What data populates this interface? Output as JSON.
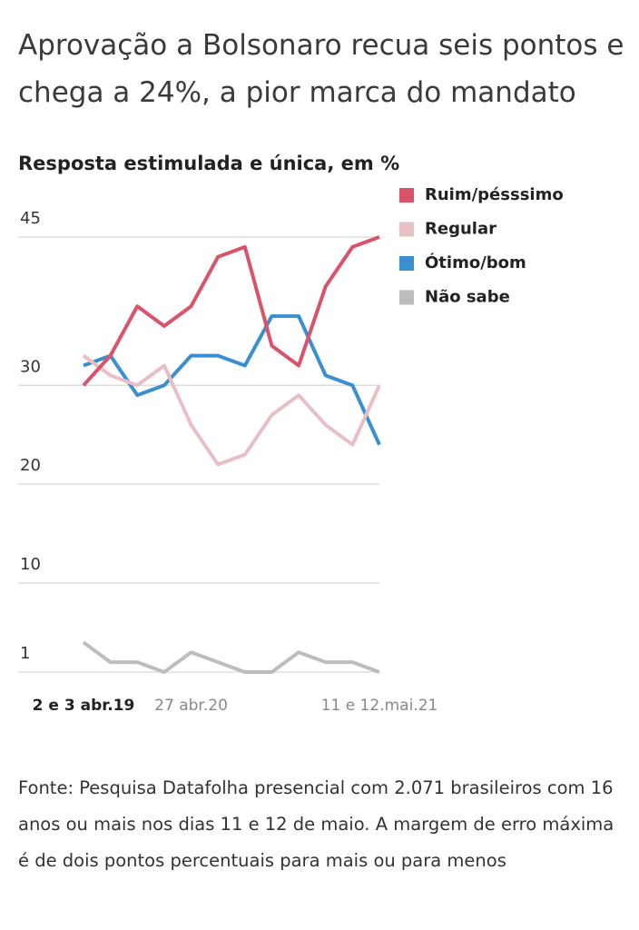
{
  "chart_data": {
    "type": "line",
    "title": "Aprovação a Bolsonaro recua seis pontos e chega a 24%, a pior marca do mandato",
    "subtitle": "Resposta estimulada e única, em %",
    "source": "Fonte: Pesquisa Datafolha presencial com 2.071 brasileiros com 16 anos ou mais nos dias 11 e 12 de maio. A margem de erro máxima é de dois pontos percentuais para mais ou para menos",
    "categories": [
      "2 e 3 abr.19",
      null,
      null,
      null,
      "27 abr.20",
      null,
      null,
      null,
      null,
      null,
      null,
      "11 e 12.mai.21"
    ],
    "series": [
      {
        "name": "Ruim/pésssimo",
        "color": "#d9536b",
        "values": [
          30,
          33,
          38,
          36,
          38,
          43,
          44,
          34,
          32,
          40,
          44,
          45
        ]
      },
      {
        "name": "Regular",
        "color": "#e8bfc4",
        "values": [
          33,
          31,
          30,
          32,
          26,
          22,
          23,
          27,
          29,
          26,
          24,
          30
        ]
      },
      {
        "name": "Ótimo/bom",
        "color": "#3a8fd0",
        "values": [
          32,
          33,
          29,
          30,
          33,
          33,
          32,
          37,
          37,
          31,
          30,
          24
        ]
      },
      {
        "name": "Não sabe",
        "color": "#bdbdbd",
        "values": [
          4,
          2,
          2,
          1,
          3,
          2,
          1,
          1,
          3,
          2,
          2,
          1
        ]
      }
    ],
    "ylim": [
      1,
      45
    ],
    "yticks": [
      1,
      10,
      20,
      30,
      45
    ],
    "grid": true,
    "legend": "top-right"
  }
}
